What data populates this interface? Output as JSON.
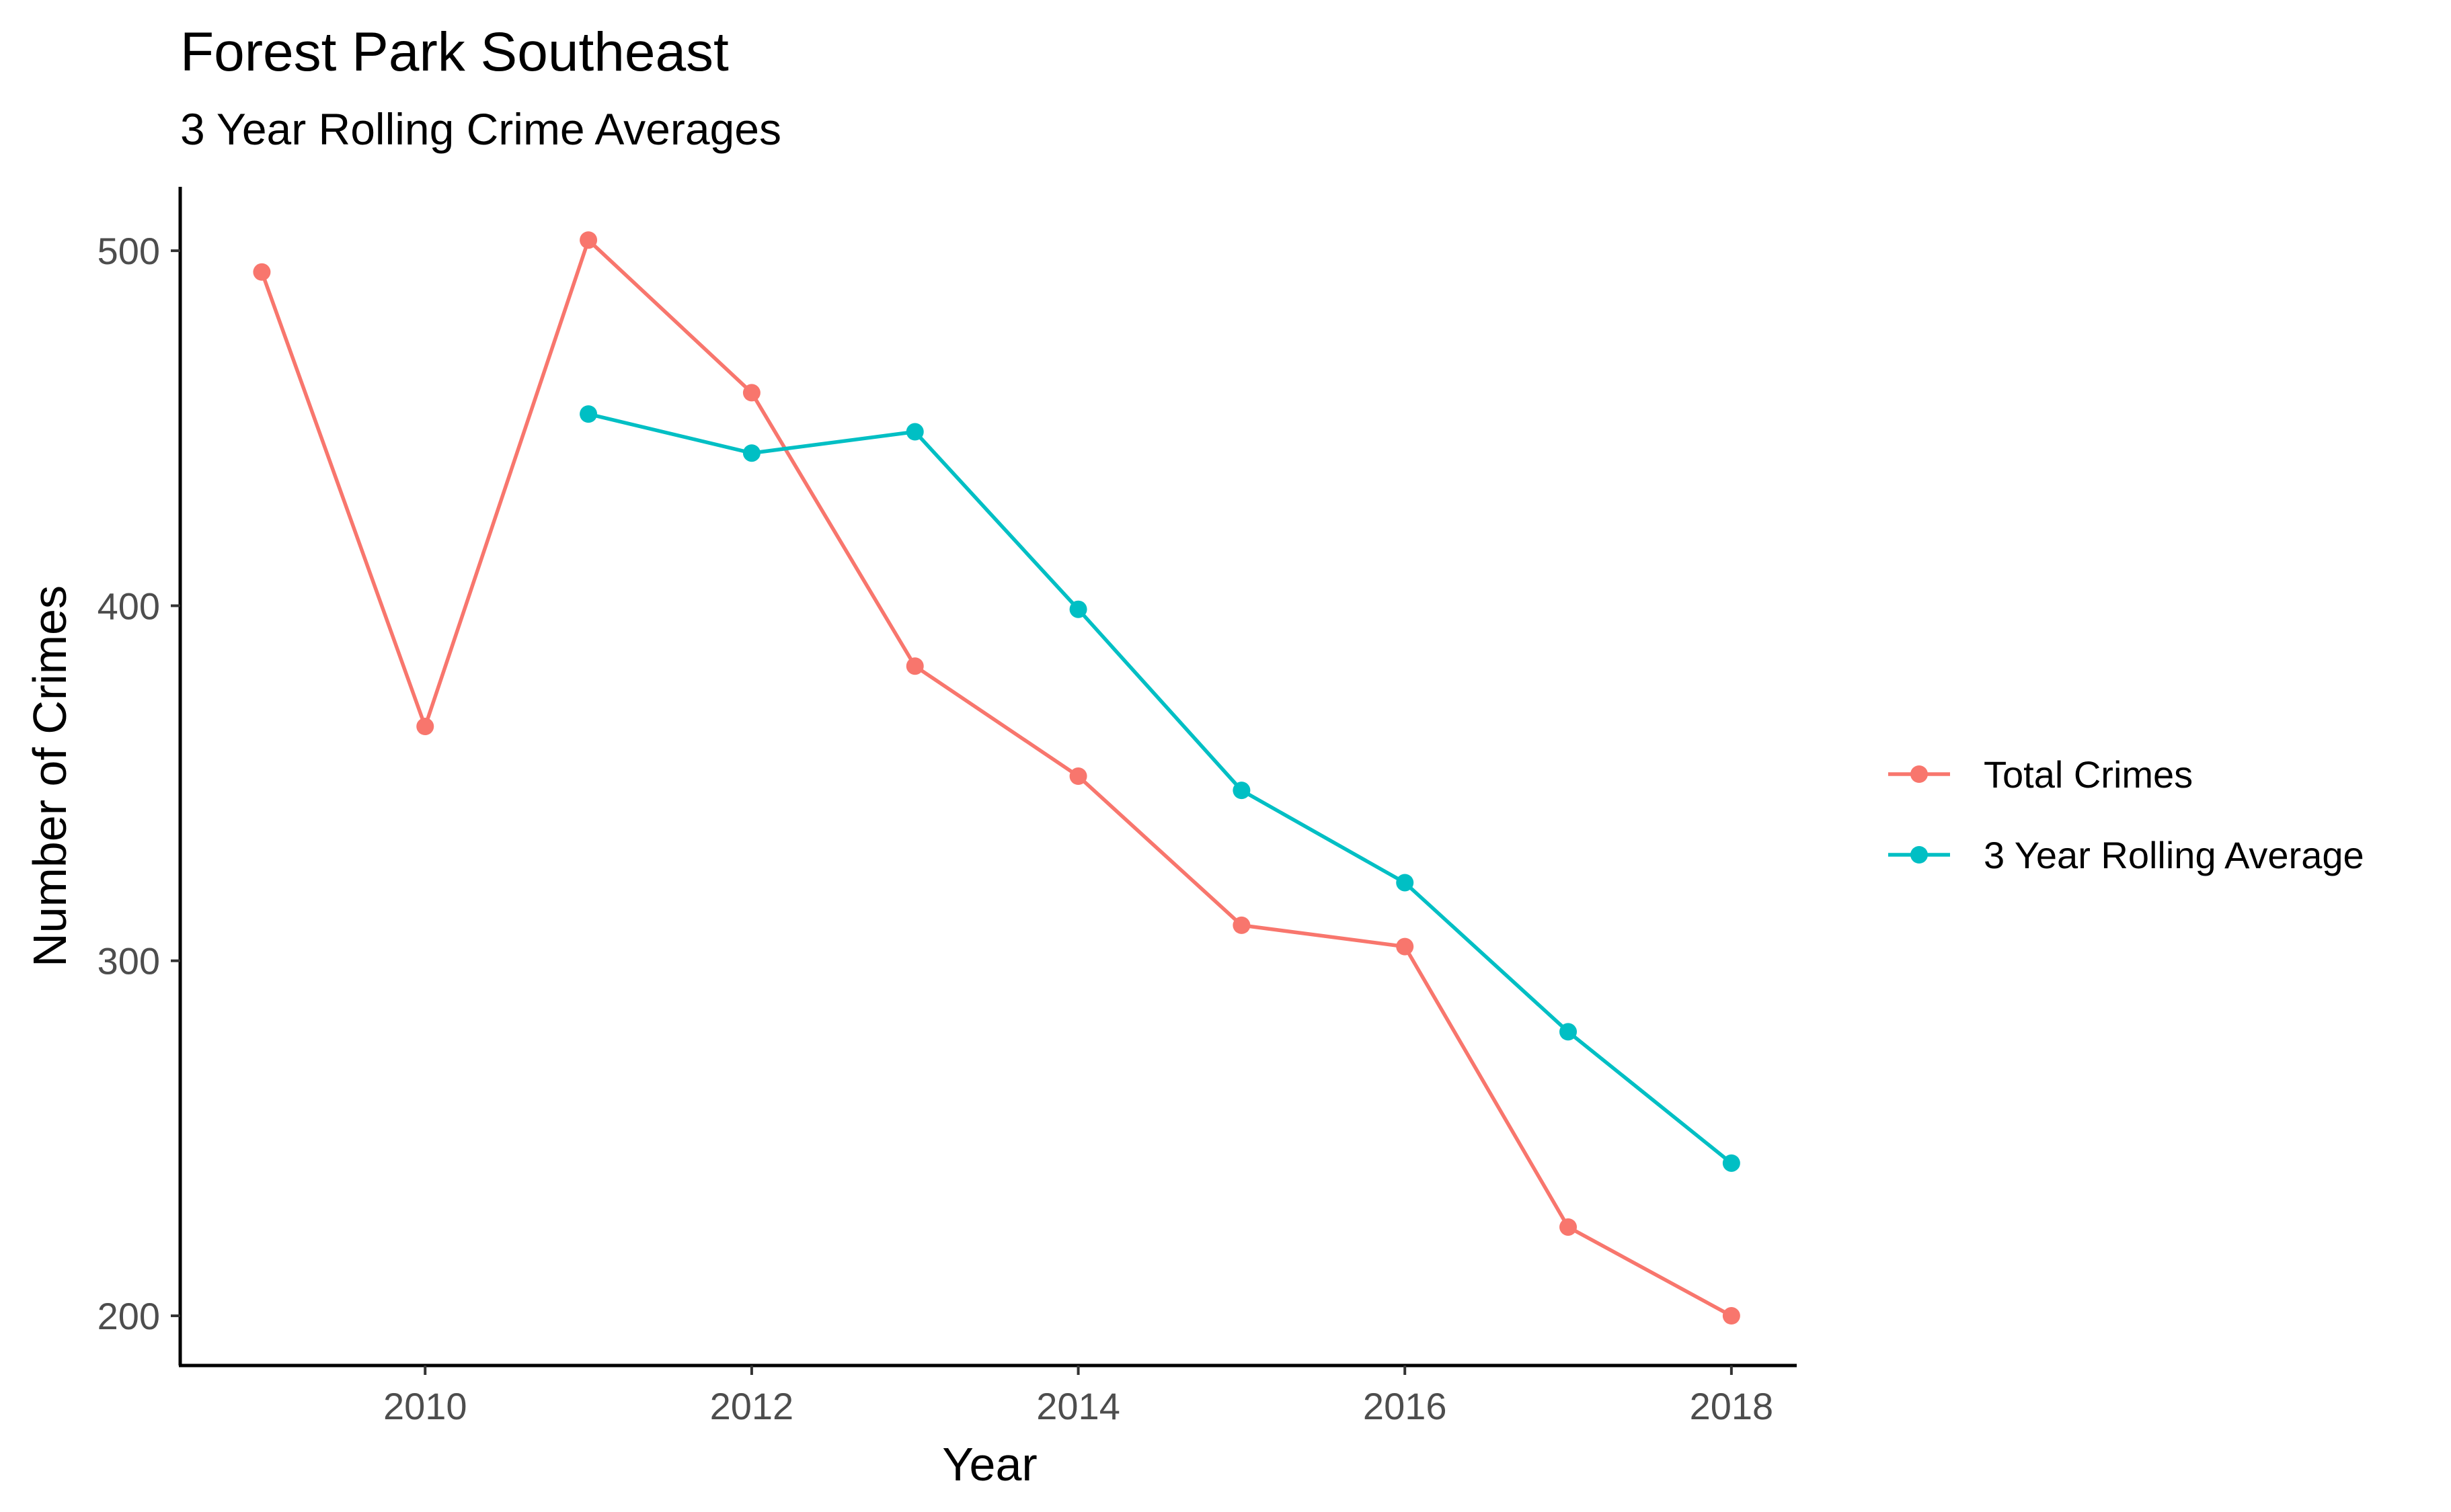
{
  "chart_data": {
    "type": "line",
    "title": "Forest Park Southeast",
    "subtitle": "3 Year Rolling Crime Averages",
    "xlabel": "Year",
    "ylabel": "Number of Crimes",
    "xlim": [
      2008.5,
      2018.4
    ],
    "ylim": [
      186,
      518
    ],
    "x_ticks": [
      2010,
      2012,
      2014,
      2016,
      2018
    ],
    "y_ticks": [
      200,
      300,
      400,
      500
    ],
    "grid": false,
    "legend_position": "right",
    "series": [
      {
        "name": "Total Crimes",
        "color": "#F8766D",
        "x": [
          2009,
          2010,
          2011,
          2012,
          2013,
          2014,
          2015,
          2016,
          2017,
          2018
        ],
        "y": [
          494,
          366,
          503,
          460,
          383,
          352,
          310,
          304,
          225,
          200
        ]
      },
      {
        "name": "3 Year Rolling Average",
        "color": "#00BFC4",
        "x": [
          2011,
          2012,
          2013,
          2014,
          2015,
          2016,
          2017,
          2018
        ],
        "y": [
          454,
          443,
          449,
          399,
          348,
          322,
          280,
          243
        ]
      }
    ]
  }
}
